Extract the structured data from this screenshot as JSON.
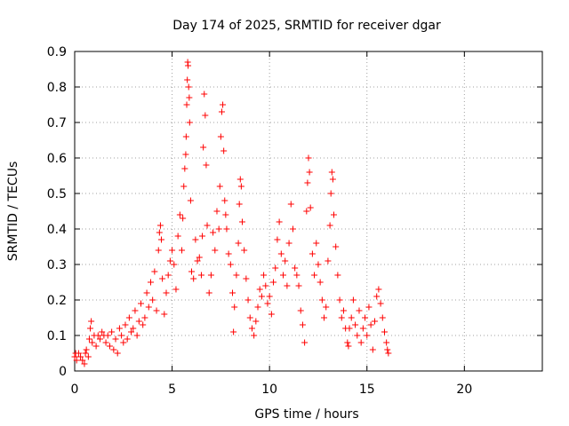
{
  "chart_data": {
    "type": "scatter",
    "title": "Day 174 of 2025, SRMTID for receiver dgar",
    "xlabel": "GPS time / hours",
    "ylabel": "SRMTID / TECUs",
    "xlim": [
      0,
      24
    ],
    "ylim": [
      0,
      0.9
    ],
    "xticks": [
      0,
      5,
      10,
      15,
      20
    ],
    "yticks": [
      0,
      0.1,
      0.2,
      0.3,
      0.4,
      0.5,
      0.6,
      0.7,
      0.8,
      0.9
    ],
    "xtick_labels": [
      "0",
      "5",
      "10",
      "15",
      "20"
    ],
    "ytick_labels": [
      "0",
      "0.1",
      "0.2",
      "0.3",
      "0.4",
      "0.5",
      "0.6",
      "0.7",
      "0.8",
      "0.9"
    ],
    "grid": true,
    "marker": "+",
    "marker_color": "#ff0000",
    "series": [
      {
        "name": "dgar",
        "points": [
          [
            0.0,
            0.04
          ],
          [
            0.05,
            0.05
          ],
          [
            0.1,
            0.03
          ],
          [
            0.2,
            0.05
          ],
          [
            0.3,
            0.04
          ],
          [
            0.4,
            0.03
          ],
          [
            0.5,
            0.02
          ],
          [
            0.55,
            0.05
          ],
          [
            0.6,
            0.06
          ],
          [
            0.7,
            0.04
          ],
          [
            0.75,
            0.09
          ],
          [
            0.8,
            0.12
          ],
          [
            0.85,
            0.14
          ],
          [
            0.9,
            0.08
          ],
          [
            1.0,
            0.1
          ],
          [
            1.1,
            0.07
          ],
          [
            1.2,
            0.1
          ],
          [
            1.3,
            0.09
          ],
          [
            1.4,
            0.11
          ],
          [
            1.5,
            0.1
          ],
          [
            1.6,
            0.08
          ],
          [
            1.7,
            0.1
          ],
          [
            1.8,
            0.07
          ],
          [
            1.9,
            0.11
          ],
          [
            2.0,
            0.06
          ],
          [
            2.1,
            0.09
          ],
          [
            2.2,
            0.05
          ],
          [
            2.3,
            0.12
          ],
          [
            2.4,
            0.1
          ],
          [
            2.5,
            0.08
          ],
          [
            2.6,
            0.13
          ],
          [
            2.7,
            0.09
          ],
          [
            2.8,
            0.15
          ],
          [
            2.9,
            0.11
          ],
          [
            3.0,
            0.12
          ],
          [
            3.1,
            0.17
          ],
          [
            3.2,
            0.1
          ],
          [
            3.3,
            0.14
          ],
          [
            3.4,
            0.19
          ],
          [
            3.5,
            0.13
          ],
          [
            3.6,
            0.15
          ],
          [
            3.7,
            0.22
          ],
          [
            3.8,
            0.18
          ],
          [
            3.9,
            0.25
          ],
          [
            4.0,
            0.2
          ],
          [
            4.1,
            0.28
          ],
          [
            4.2,
            0.17
          ],
          [
            4.3,
            0.34
          ],
          [
            4.35,
            0.39
          ],
          [
            4.4,
            0.41
          ],
          [
            4.45,
            0.37
          ],
          [
            4.5,
            0.26
          ],
          [
            4.6,
            0.16
          ],
          [
            4.7,
            0.22
          ],
          [
            4.8,
            0.27
          ],
          [
            4.9,
            0.31
          ],
          [
            5.0,
            0.34
          ],
          [
            5.1,
            0.3
          ],
          [
            5.2,
            0.23
          ],
          [
            5.3,
            0.38
          ],
          [
            5.4,
            0.44
          ],
          [
            5.5,
            0.34
          ],
          [
            5.55,
            0.43
          ],
          [
            5.6,
            0.52
          ],
          [
            5.65,
            0.57
          ],
          [
            5.7,
            0.61
          ],
          [
            5.72,
            0.66
          ],
          [
            5.75,
            0.75
          ],
          [
            5.78,
            0.82
          ],
          [
            5.8,
            0.87
          ],
          [
            5.82,
            0.86
          ],
          [
            5.85,
            0.8
          ],
          [
            5.88,
            0.77
          ],
          [
            5.9,
            0.7
          ],
          [
            5.95,
            0.48
          ],
          [
            6.0,
            0.28
          ],
          [
            6.1,
            0.26
          ],
          [
            6.2,
            0.37
          ],
          [
            6.3,
            0.31
          ],
          [
            6.4,
            0.32
          ],
          [
            6.5,
            0.27
          ],
          [
            6.55,
            0.38
          ],
          [
            6.6,
            0.63
          ],
          [
            6.65,
            0.78
          ],
          [
            6.7,
            0.72
          ],
          [
            6.75,
            0.58
          ],
          [
            6.8,
            0.41
          ],
          [
            6.9,
            0.22
          ],
          [
            7.0,
            0.27
          ],
          [
            7.1,
            0.39
          ],
          [
            7.2,
            0.34
          ],
          [
            7.3,
            0.45
          ],
          [
            7.4,
            0.4
          ],
          [
            7.45,
            0.52
          ],
          [
            7.5,
            0.66
          ],
          [
            7.55,
            0.73
          ],
          [
            7.6,
            0.75
          ],
          [
            7.65,
            0.62
          ],
          [
            7.7,
            0.48
          ],
          [
            7.75,
            0.44
          ],
          [
            7.8,
            0.4
          ],
          [
            7.9,
            0.33
          ],
          [
            8.0,
            0.3
          ],
          [
            8.1,
            0.22
          ],
          [
            8.15,
            0.11
          ],
          [
            8.2,
            0.18
          ],
          [
            8.3,
            0.27
          ],
          [
            8.4,
            0.36
          ],
          [
            8.45,
            0.47
          ],
          [
            8.5,
            0.54
          ],
          [
            8.55,
            0.52
          ],
          [
            8.6,
            0.42
          ],
          [
            8.7,
            0.34
          ],
          [
            8.8,
            0.26
          ],
          [
            8.9,
            0.2
          ],
          [
            9.0,
            0.15
          ],
          [
            9.1,
            0.12
          ],
          [
            9.2,
            0.1
          ],
          [
            9.3,
            0.14
          ],
          [
            9.4,
            0.18
          ],
          [
            9.5,
            0.23
          ],
          [
            9.6,
            0.21
          ],
          [
            9.7,
            0.27
          ],
          [
            9.8,
            0.24
          ],
          [
            9.9,
            0.19
          ],
          [
            10.0,
            0.21
          ],
          [
            10.1,
            0.16
          ],
          [
            10.2,
            0.25
          ],
          [
            10.3,
            0.29
          ],
          [
            10.4,
            0.37
          ],
          [
            10.5,
            0.42
          ],
          [
            10.6,
            0.33
          ],
          [
            10.7,
            0.27
          ],
          [
            10.8,
            0.31
          ],
          [
            10.9,
            0.24
          ],
          [
            11.0,
            0.36
          ],
          [
            11.1,
            0.47
          ],
          [
            11.2,
            0.4
          ],
          [
            11.3,
            0.29
          ],
          [
            11.4,
            0.27
          ],
          [
            11.5,
            0.24
          ],
          [
            11.6,
            0.17
          ],
          [
            11.7,
            0.13
          ],
          [
            11.8,
            0.08
          ],
          [
            11.9,
            0.45
          ],
          [
            11.95,
            0.53
          ],
          [
            12.0,
            0.6
          ],
          [
            12.05,
            0.56
          ],
          [
            12.1,
            0.46
          ],
          [
            12.2,
            0.33
          ],
          [
            12.3,
            0.27
          ],
          [
            12.4,
            0.36
          ],
          [
            12.5,
            0.3
          ],
          [
            12.6,
            0.25
          ],
          [
            12.7,
            0.2
          ],
          [
            12.8,
            0.15
          ],
          [
            12.9,
            0.18
          ],
          [
            13.0,
            0.31
          ],
          [
            13.1,
            0.41
          ],
          [
            13.15,
            0.5
          ],
          [
            13.2,
            0.56
          ],
          [
            13.25,
            0.54
          ],
          [
            13.3,
            0.44
          ],
          [
            13.4,
            0.35
          ],
          [
            13.5,
            0.27
          ],
          [
            13.6,
            0.2
          ],
          [
            13.7,
            0.15
          ],
          [
            13.8,
            0.17
          ],
          [
            13.9,
            0.12
          ],
          [
            14.0,
            0.08
          ],
          [
            14.05,
            0.07
          ],
          [
            14.1,
            0.12
          ],
          [
            14.2,
            0.15
          ],
          [
            14.3,
            0.2
          ],
          [
            14.4,
            0.13
          ],
          [
            14.5,
            0.1
          ],
          [
            14.6,
            0.17
          ],
          [
            14.7,
            0.08
          ],
          [
            14.8,
            0.12
          ],
          [
            14.9,
            0.15
          ],
          [
            15.0,
            0.1
          ],
          [
            15.1,
            0.18
          ],
          [
            15.2,
            0.13
          ],
          [
            15.3,
            0.06
          ],
          [
            15.4,
            0.14
          ],
          [
            15.5,
            0.21
          ],
          [
            15.6,
            0.23
          ],
          [
            15.7,
            0.19
          ],
          [
            15.8,
            0.15
          ],
          [
            15.9,
            0.11
          ],
          [
            16.0,
            0.08
          ],
          [
            16.05,
            0.06
          ],
          [
            16.1,
            0.05
          ]
        ]
      }
    ]
  }
}
